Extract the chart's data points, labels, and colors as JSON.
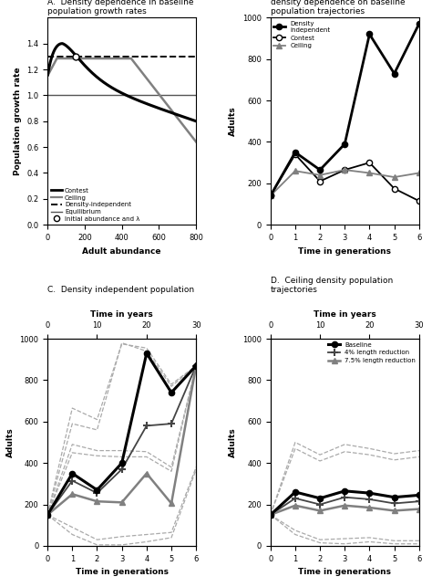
{
  "panel_A": {
    "title": "A.  Density dependence in baseline\npopulation growth rates",
    "xlabel": "Adult abundance",
    "ylabel": "Population growth rate",
    "xlim": [
      0,
      800
    ],
    "ylim": [
      0.0,
      1.6
    ],
    "yticks": [
      0.0,
      0.2,
      0.4,
      0.6,
      0.8,
      1.0,
      1.2,
      1.4
    ],
    "xticks": [
      0,
      200,
      400,
      600,
      800
    ],
    "equilibrium_y": 1.0,
    "density_independent_y": 1.3,
    "initial_abundance": 150,
    "initial_lambda": 1.3,
    "contest_peak_N": 80,
    "contest_peak_lam": 1.4,
    "contest_end_lam": 0.8,
    "ceiling_K": 450,
    "ceiling_lam_flat": 1.285,
    "ceiling_lam_end": 0.64
  },
  "panel_B": {
    "title": "B.  Influence of contest or ceiling\ndensity dependence on baseline\npopulation trajectories",
    "xlabel": "Time in generations",
    "ylabel": "Adults",
    "xlim": [
      0,
      6
    ],
    "ylim": [
      0,
      1000
    ],
    "yticks": [
      0,
      200,
      400,
      600,
      800,
      1000
    ],
    "xticks": [
      0,
      1,
      2,
      3,
      4,
      5,
      6
    ],
    "density_independent": [
      140,
      350,
      265,
      390,
      920,
      730,
      970
    ],
    "contest": [
      140,
      340,
      210,
      265,
      300,
      175,
      115
    ],
    "ceiling": [
      140,
      260,
      240,
      265,
      250,
      230,
      250
    ]
  },
  "panel_C": {
    "title": "C.  Density independent population",
    "xlabel": "Time in generations",
    "ylabel": "Adults",
    "xlabel_top": "Time in years",
    "xlim": [
      0,
      6
    ],
    "ylim": [
      0,
      1000
    ],
    "yticks": [
      0,
      200,
      400,
      600,
      800,
      1000
    ],
    "xticks": [
      0,
      1,
      2,
      3,
      4,
      5,
      6
    ],
    "xticks_top_vals": [
      0,
      10,
      20,
      30
    ],
    "xticks_top_labels": [
      "0",
      "10",
      "20",
      "30"
    ],
    "baseline": [
      150,
      350,
      270,
      400,
      930,
      740,
      870
    ],
    "pct4": [
      150,
      315,
      255,
      370,
      580,
      590,
      870
    ],
    "pct7": [
      150,
      250,
      215,
      210,
      350,
      205,
      870
    ],
    "dashed_upper1": [
      150,
      590,
      560,
      980,
      940,
      770,
      870
    ],
    "dashed_upper2": [
      150,
      665,
      610,
      975,
      955,
      780,
      870
    ],
    "dashed_mid1": [
      150,
      450,
      435,
      430,
      430,
      360,
      870
    ],
    "dashed_mid2": [
      150,
      490,
      460,
      460,
      455,
      380,
      870
    ],
    "dashed_lower1": [
      150,
      55,
      5,
      5,
      20,
      40,
      370
    ],
    "dashed_lower2": [
      150,
      90,
      30,
      45,
      55,
      65,
      380
    ]
  },
  "panel_D": {
    "title": "D.  Ceiling density population\ntrajectories",
    "xlabel": "Time in generations",
    "ylabel": "Adults",
    "xlabel_top": "Time in years",
    "xlim": [
      0,
      6
    ],
    "ylim": [
      0,
      1000
    ],
    "yticks": [
      0,
      200,
      400,
      600,
      800,
      1000
    ],
    "xticks": [
      0,
      1,
      2,
      3,
      4,
      5,
      6
    ],
    "xticks_top_vals": [
      0,
      10,
      20,
      30
    ],
    "xticks_top_labels": [
      "0",
      "10",
      "20",
      "30"
    ],
    "baseline": [
      150,
      260,
      230,
      265,
      255,
      235,
      245
    ],
    "pct4": [
      150,
      230,
      200,
      235,
      225,
      205,
      215
    ],
    "pct7": [
      150,
      195,
      170,
      195,
      185,
      170,
      178
    ],
    "dashed_upper1": [
      150,
      470,
      410,
      455,
      440,
      415,
      430
    ],
    "dashed_upper2": [
      150,
      500,
      440,
      490,
      470,
      445,
      460
    ],
    "dashed_lower1": [
      150,
      55,
      15,
      10,
      20,
      10,
      10
    ],
    "dashed_lower2": [
      150,
      75,
      30,
      35,
      40,
      25,
      25
    ]
  }
}
